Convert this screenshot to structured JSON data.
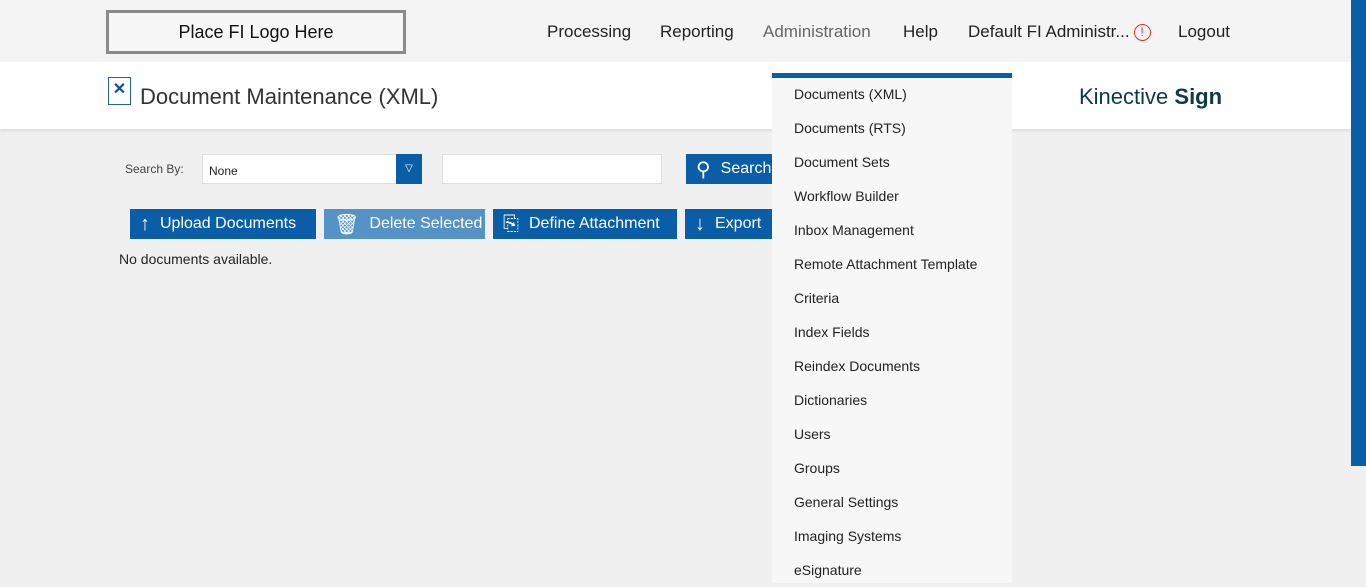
{
  "topbar": {
    "logo": "Place FI Logo Here",
    "nav": [
      "Processing",
      "Reporting",
      "Administration",
      "Help"
    ],
    "user": "Default FI Administr...",
    "alert_icon": "!",
    "logout": "Logout"
  },
  "header": {
    "title": "Document Maintenance (XML)",
    "brand_light": "Kinective ",
    "brand_bold": "Sign"
  },
  "search": {
    "label": "Search By:",
    "selected": "None",
    "value": "",
    "button": "Search"
  },
  "toolbar": {
    "upload": "Upload Documents",
    "delete": "Delete Selected",
    "define": "Define Attachment",
    "export": "Export"
  },
  "status": "No documents available.",
  "admin_menu": [
    "Documents (XML)",
    "Documents (RTS)",
    "Document Sets",
    "Workflow Builder",
    "Inbox Management",
    "Remote Attachment Template",
    "Criteria",
    "Index Fields",
    "Reindex Documents",
    "Dictionaries",
    "Users",
    "Groups",
    "General Settings",
    "Imaging Systems",
    "eSignature"
  ],
  "colors": {
    "accent": "#0a5ea8",
    "alert": "#e03030",
    "brand": "#0e3b3b"
  }
}
